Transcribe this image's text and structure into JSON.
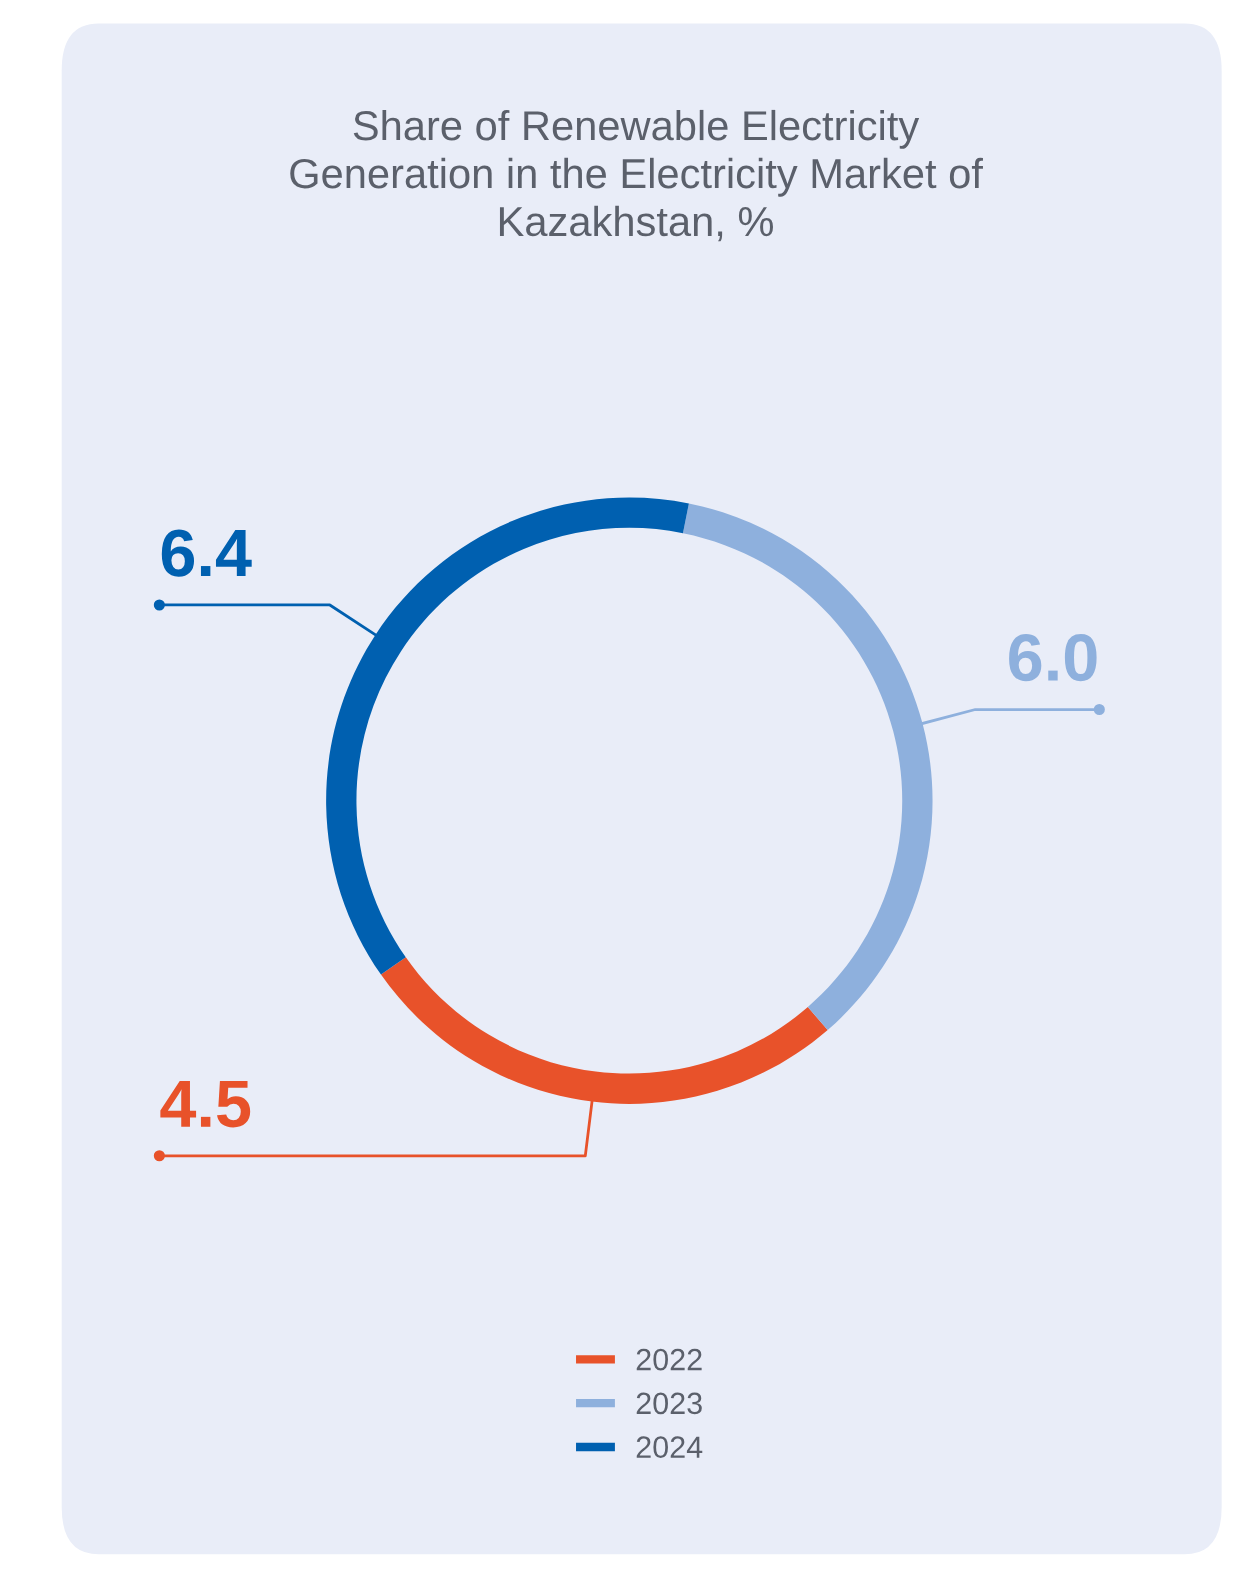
{
  "chart_data": {
    "type": "donut",
    "title": "Share of Renewable Electricity\nGeneration in the Electricity Market of\nKazakhstan, %",
    "categories": [
      "2022",
      "2023",
      "2024"
    ],
    "values": [
      4.5,
      6.0,
      6.4
    ],
    "colors": [
      "#e8522a",
      "#8eb0dd",
      "#0060b0"
    ],
    "value_labels": [
      "4.5",
      "6.0",
      "6.4"
    ],
    "legend": "bottom"
  }
}
